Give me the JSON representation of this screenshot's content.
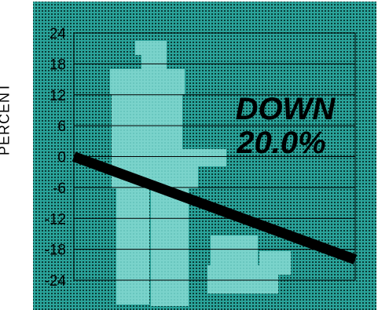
{
  "chart_data": {
    "type": "line",
    "ylabel": "PERCENT",
    "yticks": [
      24,
      18,
      12,
      6,
      0,
      -6,
      -12,
      -18,
      -24
    ],
    "ylim": [
      -24,
      24
    ],
    "grid": true,
    "series": [
      {
        "values": [
          0,
          -20
        ]
      }
    ],
    "annotation": {
      "line1": "DOWN",
      "line2": "20.0%"
    },
    "colors": {
      "background": "#2aa39a",
      "dots": "#0b3b36",
      "figure": "#7ad3cb",
      "line": "#000000",
      "text": "#000000"
    }
  }
}
